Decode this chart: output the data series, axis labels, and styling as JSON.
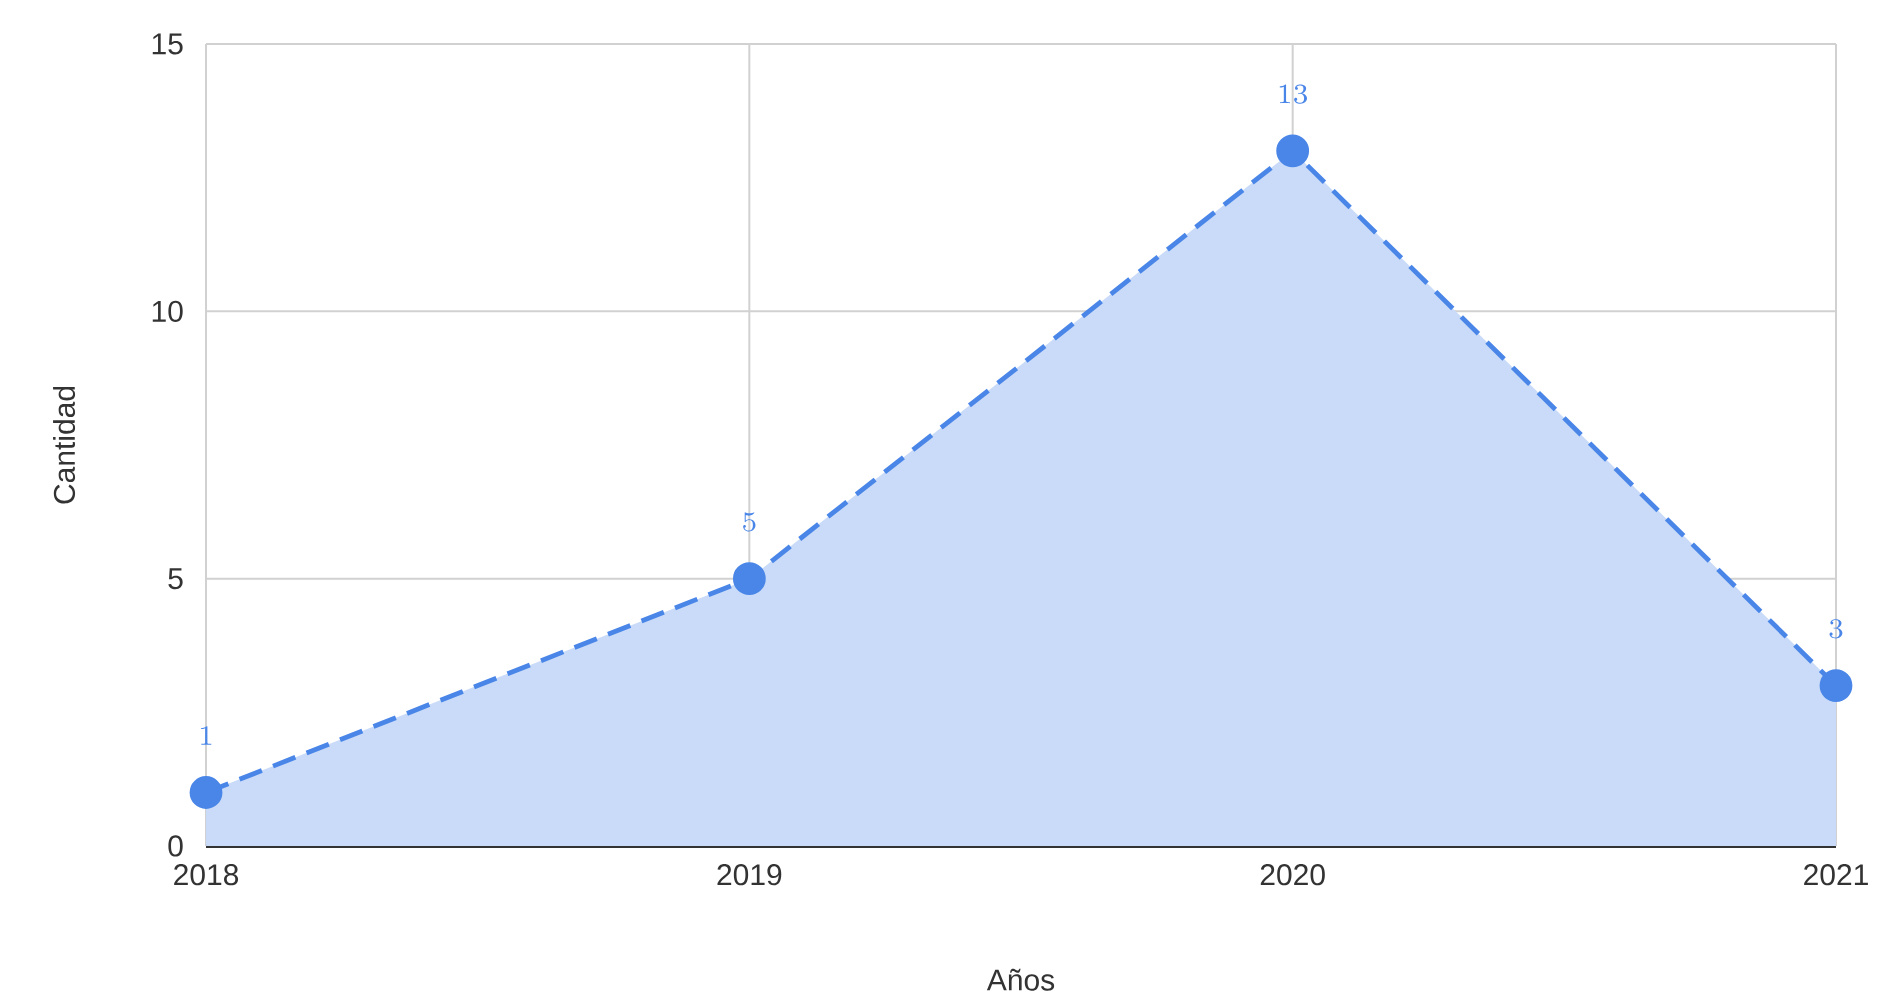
{
  "chart_data": {
    "type": "area",
    "xlabel": "Años",
    "ylabel": "Cantidad",
    "x": [
      2018,
      2019,
      2020,
      2021
    ],
    "series": [
      {
        "color": "#4a86e8",
        "values": [
          1,
          5,
          13,
          3
        ]
      }
    ],
    "xlim": [
      2018,
      2021
    ],
    "xticks": [
      2018,
      2019,
      2020,
      2021
    ],
    "ylim": [
      0,
      15
    ],
    "yticks": [
      0,
      5,
      10,
      15
    ],
    "grid": true,
    "marker": "circle",
    "line_style": "dashed",
    "data_labels": true
  }
}
